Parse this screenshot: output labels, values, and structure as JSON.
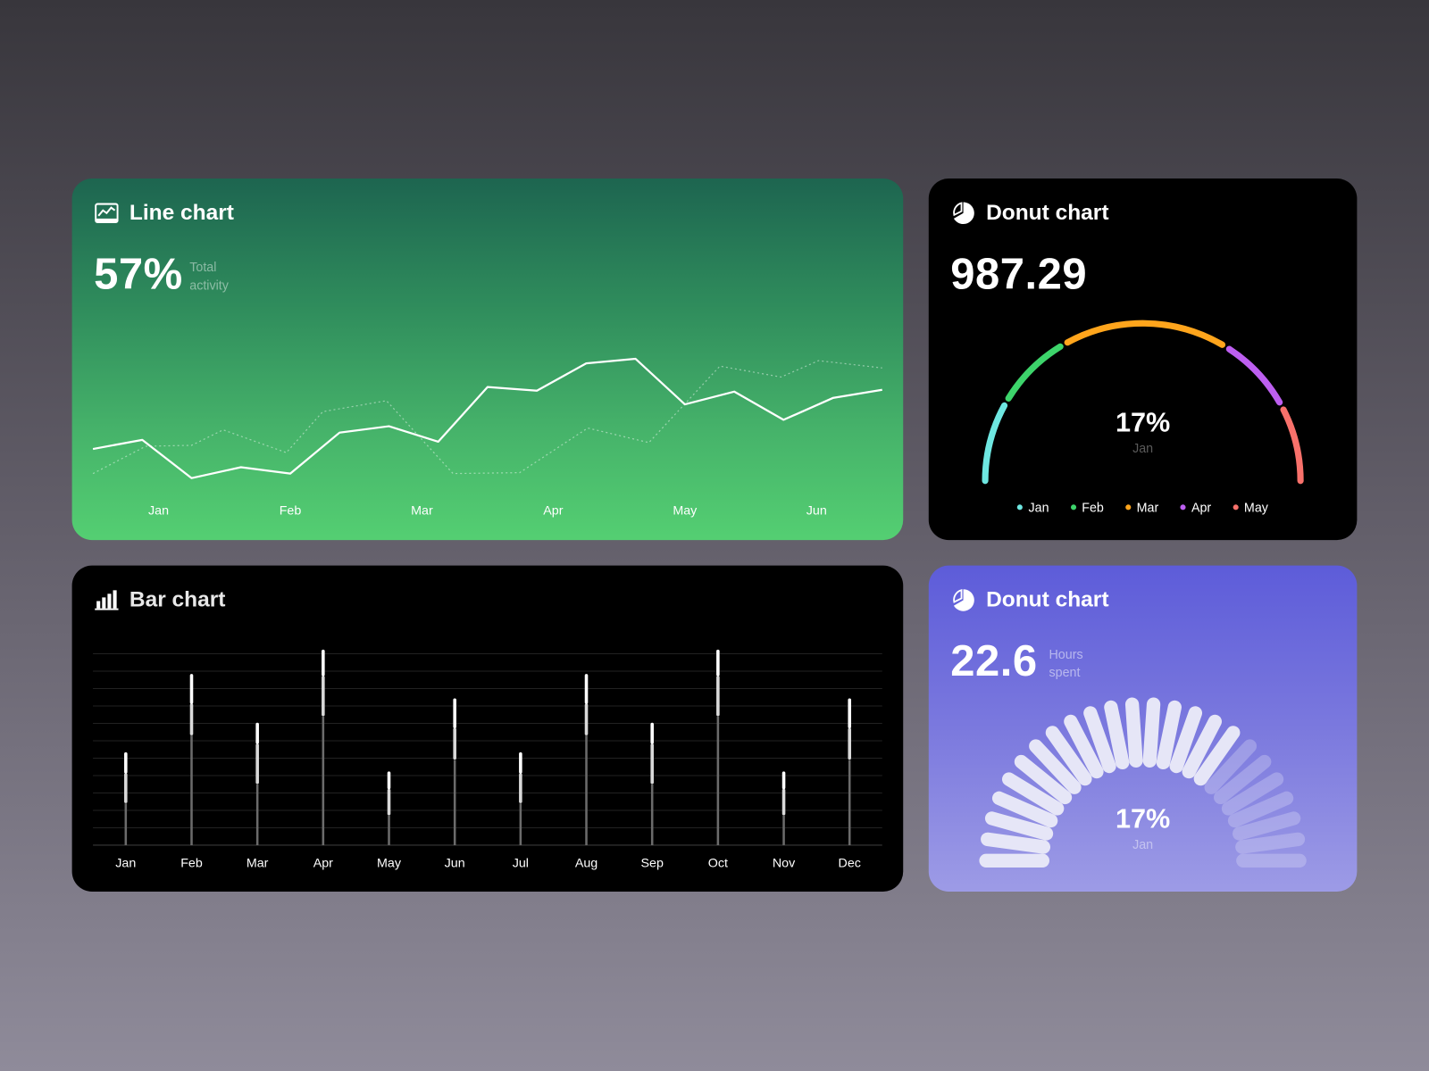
{
  "line_card": {
    "title": "Line chart",
    "value": "57%",
    "caption_1": "Total",
    "caption_2": "activity"
  },
  "donut_card": {
    "title": "Donut chart",
    "value": "987.29",
    "center_value": "17%",
    "center_label": "Jan"
  },
  "bar_card": {
    "title": "Bar chart"
  },
  "gauge_card": {
    "title": "Donut chart",
    "value": "22.6",
    "caption_1": "Hours",
    "caption_2": "spent",
    "center_value": "17%",
    "center_label": "Jan"
  },
  "chart_data": [
    {
      "type": "line",
      "title": "Line chart",
      "x_ticks": [
        "Jan",
        "Feb",
        "Mar",
        "Apr",
        "May",
        "Jun"
      ],
      "x_tick_positions": [
        1.33,
        4,
        6.67,
        9.33,
        12,
        14.67
      ],
      "xlim": [
        0,
        16
      ],
      "ylim": [
        0,
        100
      ],
      "series": [
        {
          "name": "current",
          "style": "solid",
          "x": [
            0,
            1,
            2,
            3,
            4,
            5,
            6,
            7,
            8,
            9,
            10,
            11,
            12,
            13,
            14,
            15,
            16
          ],
          "values": [
            33.5,
            38.5,
            17.5,
            23.5,
            20,
            42.5,
            46,
            37.5,
            67.5,
            65.5,
            80.5,
            83,
            58,
            65,
            49.5,
            61.5,
            66
          ]
        },
        {
          "name": "previous",
          "style": "dotted",
          "x": [
            0,
            1.07,
            2,
            2.64,
            3.92,
            4.66,
            5.95,
            7.3,
            8.65,
            10.03,
            11.27,
            12.71,
            13.95,
            14.71,
            16
          ],
          "values": [
            20,
            35,
            35.5,
            44,
            31.5,
            54,
            60,
            20,
            20.5,
            45,
            37,
            79,
            73,
            82,
            78
          ]
        }
      ]
    },
    {
      "type": "pie",
      "subtype": "half-donut",
      "title": "Donut chart",
      "categories": [
        "Jan",
        "Feb",
        "Mar",
        "Apr",
        "May"
      ],
      "values": [
        17,
        16,
        35,
        16,
        16
      ],
      "colors": [
        "#6ee7e1",
        "#3dd46b",
        "#ffa51c",
        "#bd5ff0",
        "#f8716b"
      ]
    },
    {
      "type": "bar",
      "subtype": "stacked",
      "title": "Bar chart",
      "categories": [
        "Jan",
        "Feb",
        "Mar",
        "Apr",
        "May",
        "Jun",
        "Jul",
        "Aug",
        "Sep",
        "Oct",
        "Nov",
        "Dec"
      ],
      "ylim": [
        0,
        11
      ],
      "grid": true,
      "series": [
        {
          "name": "base",
          "color": "#6b6b6b",
          "values": [
            2.4,
            6.3,
            3.5,
            7.4,
            1.7,
            4.9,
            2.4,
            6.3,
            3.5,
            7.4,
            1.7,
            4.9
          ]
        },
        {
          "name": "middle",
          "color": "#d9d9d9",
          "values": [
            1.7,
            1.8,
            2.3,
            2.3,
            1.5,
            1.8,
            1.7,
            1.8,
            2.3,
            2.3,
            1.5,
            1.8
          ]
        },
        {
          "name": "top",
          "color": "#ffffff",
          "values": [
            1.2,
            1.7,
            1.2,
            1.5,
            1.0,
            1.7,
            1.2,
            1.7,
            1.2,
            1.5,
            1.0,
            1.7
          ]
        }
      ]
    },
    {
      "type": "pie",
      "subtype": "segmented-gauge",
      "title": "Donut chart",
      "total_segments": 24,
      "filled_segments": 17
    }
  ]
}
